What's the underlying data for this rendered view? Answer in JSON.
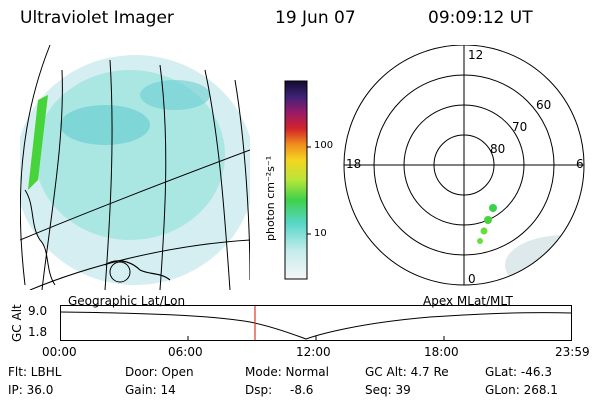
{
  "header": {
    "instrument": "Ultraviolet Imager",
    "date": "19 Jun 07",
    "time": "09:09:12 UT"
  },
  "colorbar": {
    "label": "photon cm⁻²s⁻¹",
    "tick_labels": [
      "100",
      "10"
    ]
  },
  "polar": {
    "mlt_labels": [
      "12",
      "18",
      "6",
      "0"
    ],
    "mlat_labels": [
      "60",
      "70",
      "80"
    ]
  },
  "timeline": {
    "left_caption": "Geographic Lat/Lon",
    "right_caption": "Apex MLat/MLT",
    "axis_title": "GC Alt",
    "y_labels": [
      "9.0",
      "1.8"
    ],
    "x_labels": [
      "00:00",
      "06:00",
      "12:00",
      "18:00",
      "23:59"
    ]
  },
  "info": {
    "flt": "Flt: LBHL",
    "ip": "IP: 36.0",
    "door": "Door: Open",
    "gain": "Gain: 14",
    "mode": "Mode: Normal",
    "dsp_label": "Dsp:",
    "dsp_value": "-8.6",
    "gc_alt": "GC Alt: 4.7 Re",
    "seq": "Seq: 39",
    "glat": "GLat: -46.3",
    "glon": "GLon: 268.1"
  },
  "colors": {
    "aurora_cyan": "#7fe0d6",
    "aurora_green": "#4ccf4c",
    "marker_red": "#e23a2a"
  }
}
